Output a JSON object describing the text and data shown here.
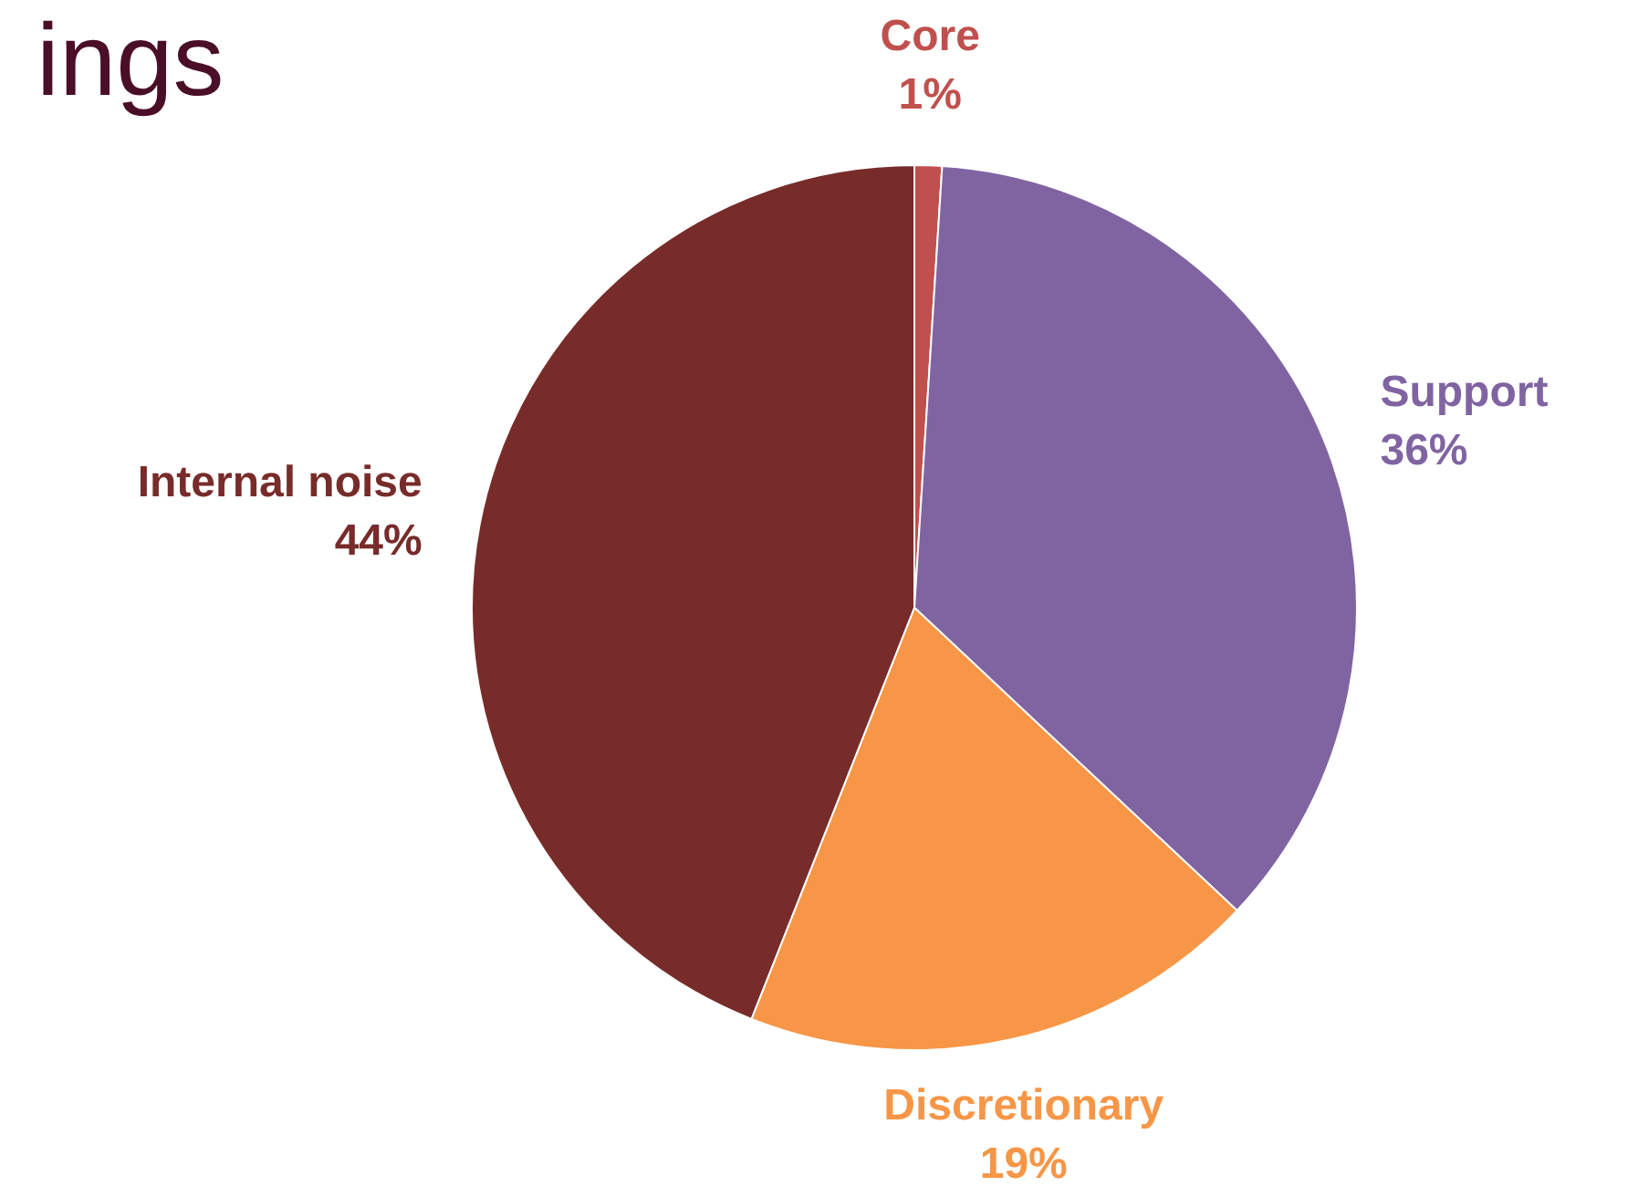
{
  "chart_data": {
    "type": "pie",
    "title": "ings",
    "categories": [
      "Core",
      "Support",
      "Discretionary",
      "Internal noise"
    ],
    "values": [
      1,
      36,
      19,
      44
    ],
    "colors": [
      "#c0504d",
      "#8064a2",
      "#f79646",
      "#772c2a"
    ],
    "value_labels": [
      "1%",
      "36%",
      "19%",
      "44%"
    ],
    "legend": false
  }
}
